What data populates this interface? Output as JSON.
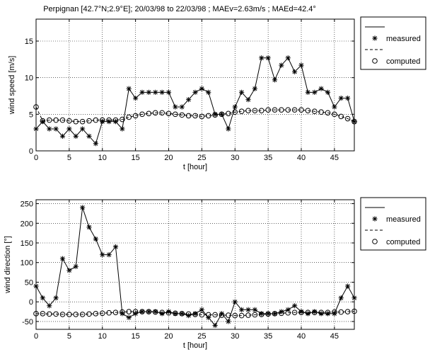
{
  "figure_title": "Perpignan [42.7°N;2.9°E]; 20/03/98 to 22/03/98 ; MAEv=2.63m/s ; MAEd=42.4°",
  "chart_data": [
    {
      "type": "line",
      "title": "Perpignan [42.7°N;2.9°E]; 20/03/98 to 22/03/98 ; MAEv=2.63m/s ; MAEd=42.4°",
      "xlabel": "t [hour]",
      "ylabel": "wind speed [m/s]",
      "xlim": [
        0,
        48
      ],
      "ylim": [
        0,
        18
      ],
      "xticks": [
        0,
        5,
        10,
        15,
        20,
        25,
        30,
        35,
        40,
        45
      ],
      "yticks": [
        0,
        5,
        10,
        15
      ],
      "grid": true,
      "legend_position": "outside-right",
      "legend_label_measured": "measured",
      "legend_label_computed": "computed",
      "x": [
        0,
        1,
        2,
        3,
        4,
        5,
        6,
        7,
        8,
        9,
        10,
        11,
        12,
        13,
        14,
        15,
        16,
        17,
        18,
        19,
        20,
        21,
        22,
        23,
        24,
        25,
        26,
        27,
        28,
        29,
        30,
        31,
        32,
        33,
        34,
        35,
        36,
        37,
        38,
        39,
        40,
        41,
        42,
        43,
        44,
        45,
        46,
        47,
        48
      ],
      "series": [
        {
          "name": "measured",
          "marker": "asterisk",
          "values": [
            3,
            4,
            3,
            3,
            2,
            3,
            2,
            3,
            2,
            1,
            4,
            4,
            4,
            3,
            8.5,
            7.2,
            8,
            8,
            8,
            8,
            8,
            6,
            6,
            7,
            8,
            8.5,
            8,
            5,
            5,
            3,
            6,
            8,
            7,
            8.5,
            12.7,
            12.7,
            9.7,
            11.7,
            12.7,
            10.8,
            11.7,
            8,
            8,
            8.5,
            8,
            6,
            7.2,
            7.2,
            4
          ]
        },
        {
          "name": "computed",
          "marker": "circle",
          "values": [
            6,
            4.1,
            4.2,
            4.2,
            4.2,
            4.1,
            4.0,
            4.0,
            4.1,
            4.2,
            4.2,
            4.2,
            4.2,
            4.3,
            4.6,
            4.8,
            5.0,
            5.1,
            5.2,
            5.2,
            5.1,
            5.0,
            4.9,
            4.8,
            4.8,
            4.7,
            4.8,
            4.9,
            5.0,
            5.1,
            5.3,
            5.4,
            5.5,
            5.5,
            5.5,
            5.6,
            5.6,
            5.6,
            5.6,
            5.6,
            5.6,
            5.5,
            5.4,
            5.3,
            5.2,
            5.0,
            4.7,
            4.4,
            4.0
          ]
        }
      ]
    },
    {
      "type": "line",
      "title": "",
      "xlabel": "t [hour]",
      "ylabel": "wind direction [°]",
      "xlim": [
        0,
        48
      ],
      "ylim": [
        -70,
        260
      ],
      "xticks": [
        0,
        5,
        10,
        15,
        20,
        25,
        30,
        35,
        40,
        45
      ],
      "yticks": [
        -50,
        0,
        50,
        100,
        150,
        200,
        250
      ],
      "grid": true,
      "legend_position": "outside-right",
      "legend_label_measured": "measured",
      "legend_label_computed": "computed",
      "x": [
        0,
        1,
        2,
        3,
        4,
        5,
        6,
        7,
        8,
        9,
        10,
        11,
        12,
        13,
        14,
        15,
        16,
        17,
        18,
        19,
        20,
        21,
        22,
        23,
        24,
        25,
        26,
        27,
        28,
        29,
        30,
        31,
        32,
        33,
        34,
        35,
        36,
        37,
        38,
        39,
        40,
        41,
        42,
        43,
        44,
        45,
        46,
        47,
        48
      ],
      "series": [
        {
          "name": "measured",
          "marker": "asterisk",
          "values": [
            40,
            10,
            -10,
            10,
            110,
            80,
            90,
            240,
            190,
            160,
            120,
            120,
            140,
            -30,
            -40,
            -30,
            -25,
            -25,
            -25,
            -30,
            -25,
            -30,
            -30,
            -35,
            -30,
            -20,
            -40,
            -60,
            -30,
            -50,
            0,
            -20,
            -20,
            -20,
            -30,
            -30,
            -30,
            -25,
            -20,
            -10,
            -25,
            -30,
            -25,
            -30,
            -30,
            -30,
            10,
            40,
            10
          ]
        },
        {
          "name": "computed",
          "marker": "circle",
          "values": [
            -30,
            -30,
            -31,
            -31,
            -32,
            -32,
            -32,
            -32,
            -31,
            -30,
            -29,
            -28,
            -27,
            -26,
            -25,
            -25,
            -25,
            -25,
            -26,
            -27,
            -28,
            -29,
            -30,
            -31,
            -32,
            -33,
            -33,
            -33,
            -34,
            -34,
            -35,
            -35,
            -34,
            -33,
            -32,
            -31,
            -30,
            -29,
            -28,
            -27,
            -27,
            -27,
            -27,
            -27,
            -27,
            -26,
            -26,
            -25,
            -24
          ]
        }
      ]
    }
  ]
}
